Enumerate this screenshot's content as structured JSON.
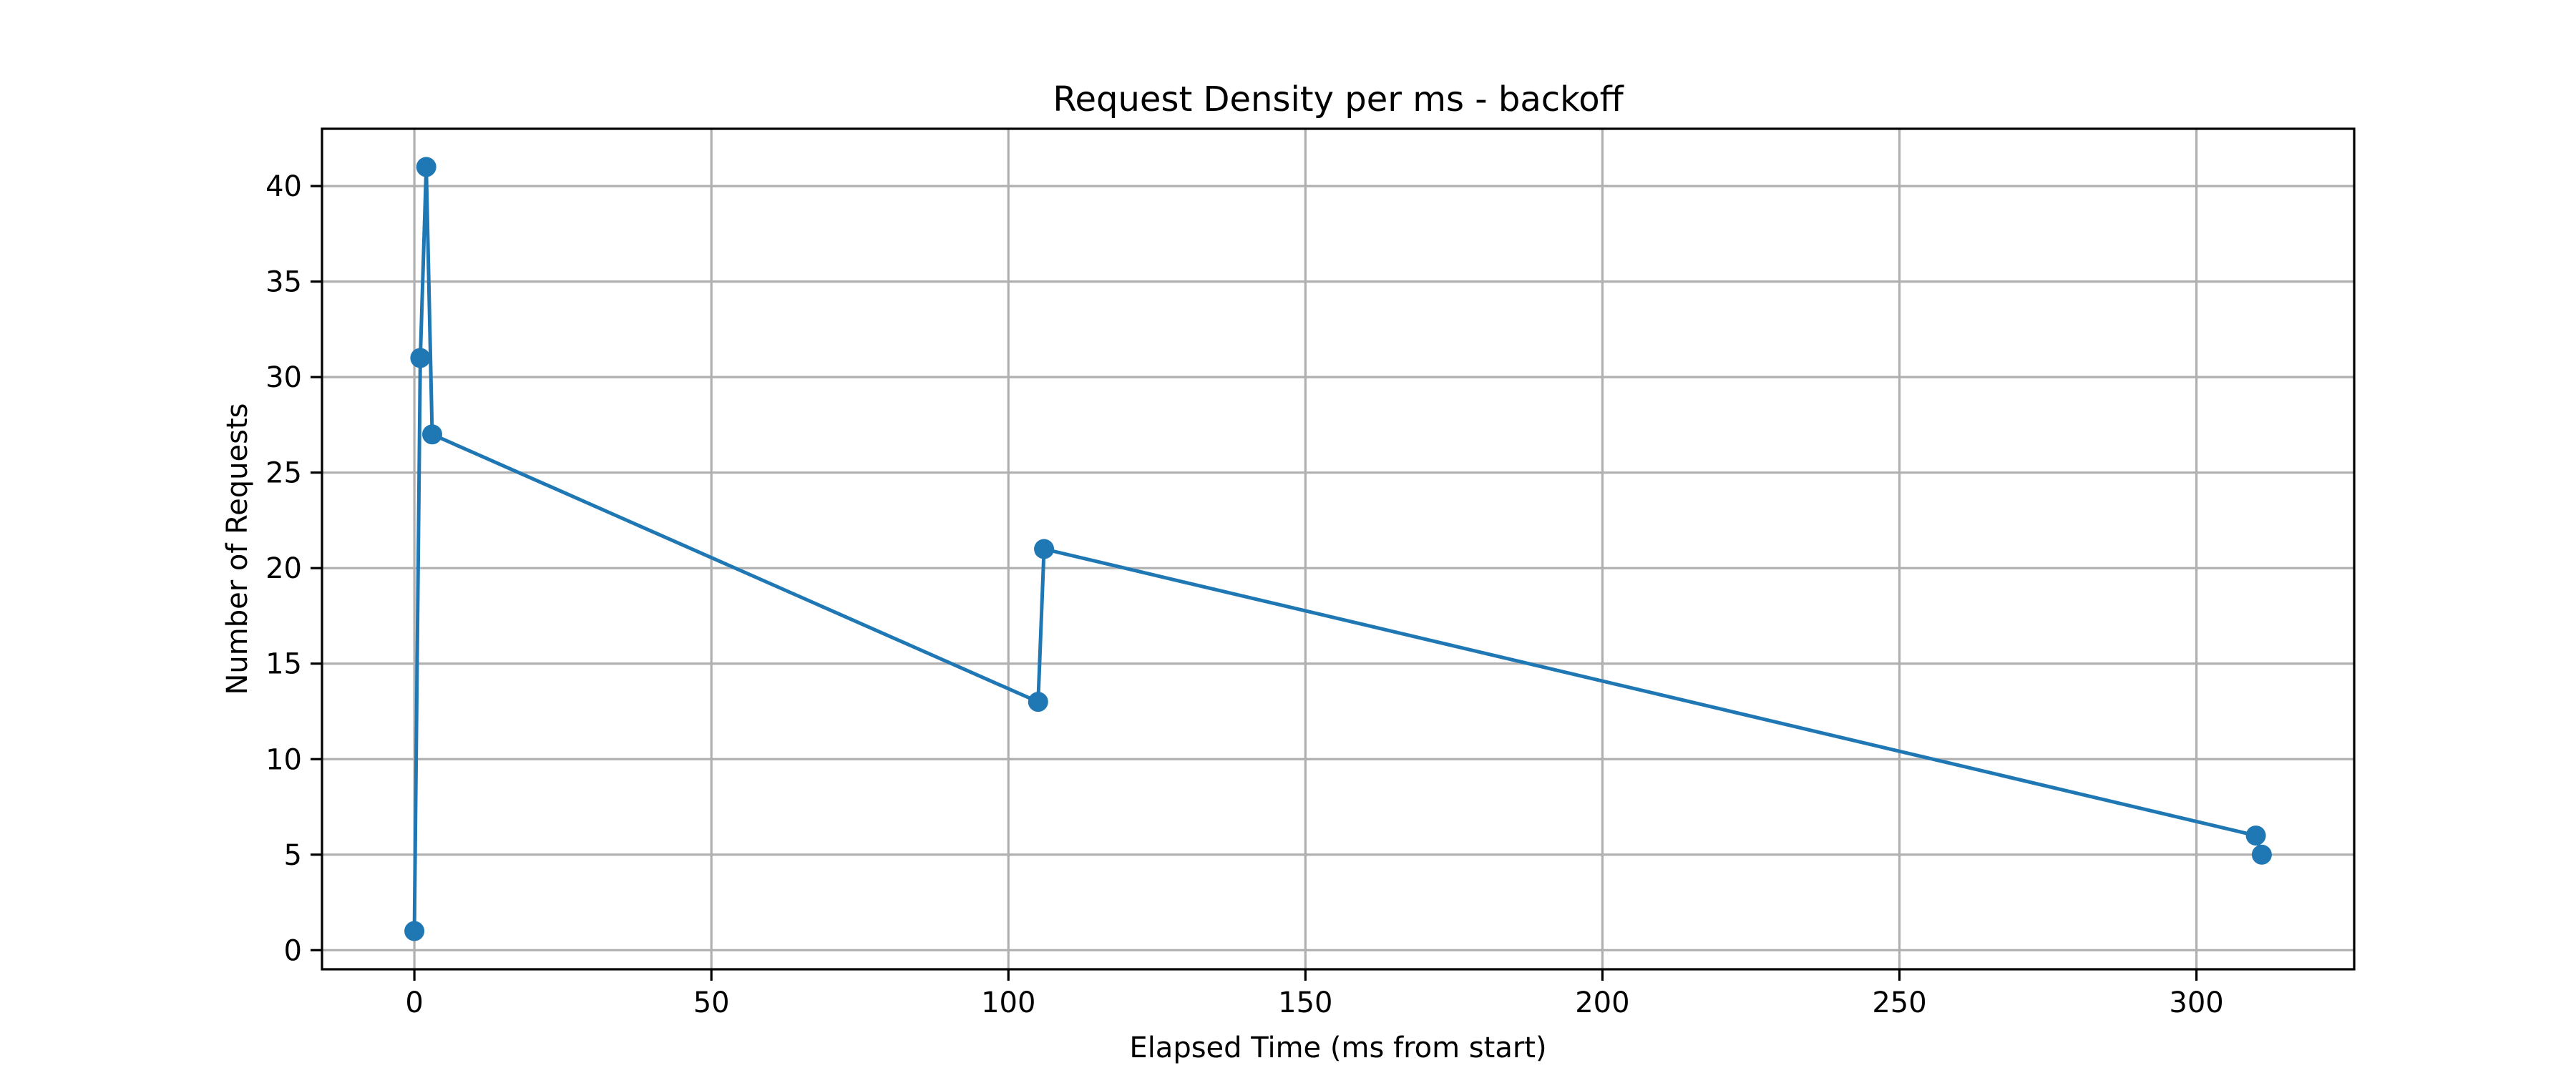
{
  "chart_data": {
    "type": "line",
    "title": "Request Density per ms - backoff",
    "xlabel": "Elapsed Time (ms from start)",
    "ylabel": "Number of Requests",
    "xlim": [
      -15.55,
      326.55
    ],
    "ylim": [
      -1.0,
      43.0
    ],
    "xticks": [
      0,
      50,
      100,
      150,
      200,
      250,
      300
    ],
    "yticks": [
      0,
      5,
      10,
      15,
      20,
      25,
      30,
      35,
      40
    ],
    "grid": true,
    "legend": "none",
    "marker": "circle",
    "series": [
      {
        "color": "#1f77b4",
        "points": [
          {
            "x": 0,
            "y": 1
          },
          {
            "x": 1,
            "y": 31
          },
          {
            "x": 2,
            "y": 41
          },
          {
            "x": 3,
            "y": 27
          },
          {
            "x": 105,
            "y": 13
          },
          {
            "x": 106,
            "y": 21
          },
          {
            "x": 310,
            "y": 6
          },
          {
            "x": 311,
            "y": 5
          }
        ]
      }
    ]
  }
}
